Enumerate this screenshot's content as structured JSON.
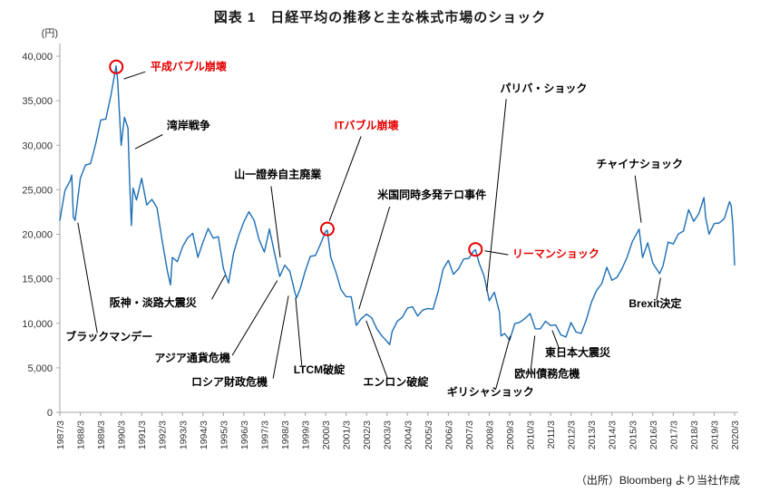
{
  "title": "図表 1　日経平均の推移と主な株式市場のショック",
  "source": "（出所）Bloomberg より当社作成",
  "chart_data": {
    "type": "line",
    "title": "図表 1　日経平均の推移と主な株式市場のショック",
    "xlabel": "",
    "ylabel": "(円)",
    "ylim": [
      0,
      40000
    ],
    "yticks": [
      0,
      5000,
      10000,
      15000,
      20000,
      25000,
      30000,
      35000,
      40000
    ],
    "x_domain": [
      1987.17,
      2020.17
    ],
    "xtick_labels": [
      "1987/3",
      "1988/3",
      "1989/3",
      "1990/3",
      "1991/3",
      "1992/3",
      "1993/3",
      "1994/3",
      "1995/3",
      "1996/3",
      "1997/3",
      "1998/3",
      "1999/3",
      "2000/3",
      "2001/3",
      "2002/3",
      "2003/3",
      "2004/3",
      "2005/3",
      "2006/3",
      "2007/3",
      "2008/3",
      "2009/3",
      "2010/3",
      "2011/3",
      "2012/3",
      "2013/3",
      "2014/3",
      "2015/3",
      "2016/3",
      "2017/3",
      "2018/3",
      "2019/3",
      "2020/3"
    ],
    "grid": false,
    "legend": "none",
    "line_color": "#1b6eb5",
    "red_color": "#e60000",
    "series": [
      {
        "name": "日経平均",
        "points": [
          [
            1987.17,
            21567
          ],
          [
            1987.42,
            24902
          ],
          [
            1987.67,
            26010
          ],
          [
            1987.75,
            26646
          ],
          [
            1987.83,
            21910
          ],
          [
            1987.92,
            21564
          ],
          [
            1988.17,
            26260
          ],
          [
            1988.42,
            27769
          ],
          [
            1988.67,
            27924
          ],
          [
            1988.92,
            30159
          ],
          [
            1989.17,
            32839
          ],
          [
            1989.42,
            32949
          ],
          [
            1989.67,
            35637
          ],
          [
            1989.92,
            38916
          ],
          [
            1990.0,
            37189
          ],
          [
            1990.17,
            29980
          ],
          [
            1990.33,
            33130
          ],
          [
            1990.5,
            31940
          ],
          [
            1990.58,
            25978
          ],
          [
            1990.67,
            20983
          ],
          [
            1990.75,
            25194
          ],
          [
            1990.92,
            23849
          ],
          [
            1991.17,
            26292
          ],
          [
            1991.42,
            23291
          ],
          [
            1991.67,
            23916
          ],
          [
            1991.92,
            22984
          ],
          [
            1992.17,
            19346
          ],
          [
            1992.42,
            15952
          ],
          [
            1992.58,
            14309
          ],
          [
            1992.67,
            17399
          ],
          [
            1992.92,
            16925
          ],
          [
            1993.17,
            18591
          ],
          [
            1993.42,
            19590
          ],
          [
            1993.67,
            20106
          ],
          [
            1993.92,
            17417
          ],
          [
            1994.17,
            19112
          ],
          [
            1994.42,
            20644
          ],
          [
            1994.67,
            19564
          ],
          [
            1994.92,
            19723
          ],
          [
            1995.17,
            16140
          ],
          [
            1995.42,
            14517
          ],
          [
            1995.67,
            17913
          ],
          [
            1995.92,
            19868
          ],
          [
            1996.17,
            21407
          ],
          [
            1996.42,
            22531
          ],
          [
            1996.67,
            21556
          ],
          [
            1996.92,
            19361
          ],
          [
            1997.17,
            18003
          ],
          [
            1997.42,
            20605
          ],
          [
            1997.67,
            17888
          ],
          [
            1997.92,
            15259
          ],
          [
            1998.17,
            16527
          ],
          [
            1998.42,
            15830
          ],
          [
            1998.67,
            13406
          ],
          [
            1998.75,
            12880
          ],
          [
            1998.92,
            13842
          ],
          [
            1999.17,
            15837
          ],
          [
            1999.42,
            17530
          ],
          [
            1999.67,
            17605
          ],
          [
            1999.92,
            18934
          ],
          [
            2000.17,
            20337
          ],
          [
            2000.25,
            20462
          ],
          [
            2000.42,
            17411
          ],
          [
            2000.67,
            15747
          ],
          [
            2000.92,
            13786
          ],
          [
            2001.17,
            12999
          ],
          [
            2001.42,
            12969
          ],
          [
            2001.67,
            9774
          ],
          [
            2001.92,
            10543
          ],
          [
            2002.17,
            11025
          ],
          [
            2002.42,
            10622
          ],
          [
            2002.67,
            9383
          ],
          [
            2002.92,
            8579
          ],
          [
            2003.17,
            7973
          ],
          [
            2003.3,
            7607
          ],
          [
            2003.42,
            9083
          ],
          [
            2003.67,
            10219
          ],
          [
            2003.92,
            10677
          ],
          [
            2004.17,
            11715
          ],
          [
            2004.42,
            11859
          ],
          [
            2004.67,
            10824
          ],
          [
            2004.92,
            11489
          ],
          [
            2005.17,
            11669
          ],
          [
            2005.42,
            11584
          ],
          [
            2005.67,
            13574
          ],
          [
            2005.92,
            16111
          ],
          [
            2006.17,
            17060
          ],
          [
            2006.42,
            15505
          ],
          [
            2006.67,
            16128
          ],
          [
            2006.92,
            17226
          ],
          [
            2007.17,
            17288
          ],
          [
            2007.42,
            18138
          ],
          [
            2007.5,
            18262
          ],
          [
            2007.67,
            16786
          ],
          [
            2007.92,
            15308
          ],
          [
            2008.17,
            12526
          ],
          [
            2008.42,
            13481
          ],
          [
            2008.67,
            11260
          ],
          [
            2008.75,
            8577
          ],
          [
            2008.92,
            8860
          ],
          [
            2009.17,
            8110
          ],
          [
            2009.42,
            9958
          ],
          [
            2009.67,
            10133
          ],
          [
            2009.92,
            10546
          ],
          [
            2010.17,
            11090
          ],
          [
            2010.42,
            9383
          ],
          [
            2010.67,
            9369
          ],
          [
            2010.92,
            10229
          ],
          [
            2011.17,
            9755
          ],
          [
            2011.42,
            9816
          ],
          [
            2011.67,
            8700
          ],
          [
            2011.92,
            8455
          ],
          [
            2012.17,
            10084
          ],
          [
            2012.42,
            9007
          ],
          [
            2012.67,
            8870
          ],
          [
            2012.92,
            10395
          ],
          [
            2013.17,
            12398
          ],
          [
            2013.42,
            13677
          ],
          [
            2013.67,
            14456
          ],
          [
            2013.92,
            16291
          ],
          [
            2014.17,
            14828
          ],
          [
            2014.42,
            15162
          ],
          [
            2014.67,
            16174
          ],
          [
            2014.92,
            17451
          ],
          [
            2015.17,
            19207
          ],
          [
            2015.42,
            20236
          ],
          [
            2015.5,
            20585
          ],
          [
            2015.67,
            17388
          ],
          [
            2015.92,
            19034
          ],
          [
            2016.17,
            16759
          ],
          [
            2016.5,
            15576
          ],
          [
            2016.67,
            16450
          ],
          [
            2016.92,
            19114
          ],
          [
            2017.17,
            18909
          ],
          [
            2017.42,
            20033
          ],
          [
            2017.67,
            20356
          ],
          [
            2017.92,
            22765
          ],
          [
            2018.17,
            21454
          ],
          [
            2018.42,
            22305
          ],
          [
            2018.67,
            24120
          ],
          [
            2018.75,
            21920
          ],
          [
            2018.92,
            20015
          ],
          [
            2019.17,
            21206
          ],
          [
            2019.42,
            21276
          ],
          [
            2019.67,
            21756
          ],
          [
            2019.92,
            23657
          ],
          [
            2020.0,
            23205
          ],
          [
            2020.08,
            21143
          ],
          [
            2020.17,
            16553
          ]
        ]
      }
    ],
    "highlight_circles": [
      {
        "id": "heisei-bubble-peak",
        "x": 1989.93,
        "y": 38800
      },
      {
        "id": "it-bubble-peak",
        "x": 2000.25,
        "y": 20600
      },
      {
        "id": "pre-lehman-peak",
        "x": 2007.5,
        "y": 18300
      }
    ],
    "annotations": [
      {
        "id": "heisei-bubble",
        "label": "平成バブル崩壊",
        "color": "red",
        "anchor": "start",
        "text": [
          1991.6,
          38400
        ],
        "line": [
          1991.35,
          38250,
          1990.3,
          37450
        ]
      },
      {
        "id": "gulf-war",
        "label": "湾岸戦争",
        "color": "black",
        "anchor": "start",
        "text": [
          1992.4,
          31800
        ],
        "line": [
          1992.2,
          31200,
          1990.85,
          29600
        ]
      },
      {
        "id": "yamaichi",
        "label": "山一證券自主廃業",
        "color": "black",
        "anchor": "start",
        "text": [
          1995.7,
          26300
        ],
        "line": [
          1997.5,
          25400,
          1997.95,
          17400
        ]
      },
      {
        "id": "paribas",
        "label": "パリバ・ショック",
        "color": "black",
        "anchor": "start",
        "text": [
          2008.7,
          36000
        ],
        "line": [
          2009.0,
          35200,
          2008.05,
          13600
        ]
      },
      {
        "id": "it-bubble",
        "label": "ITバブル崩壊",
        "color": "red",
        "anchor": "start",
        "text": [
          2000.6,
          31800
        ],
        "line": [
          2001.9,
          31000,
          2000.35,
          21500
        ]
      },
      {
        "id": "us-terror",
        "label": "米国同時多発テロ事件",
        "color": "black",
        "anchor": "start",
        "text": [
          2002.7,
          24000
        ],
        "line": [
          2003.3,
          23100,
          2001.8,
          11600
        ]
      },
      {
        "id": "china-shock",
        "label": "チャイナショック",
        "color": "black",
        "anchor": "start",
        "text": [
          2013.4,
          27500
        ],
        "line": [
          2015.3,
          26600,
          2015.6,
          21300
        ]
      },
      {
        "id": "lehman",
        "label": "リーマンショック",
        "color": "red",
        "anchor": "start",
        "text": [
          2009.3,
          17400
        ],
        "line": [
          2009.1,
          17700,
          2007.95,
          18150
        ]
      },
      {
        "id": "hanshin",
        "label": "阪神・淡路大震災",
        "color": "black",
        "anchor": "start",
        "text": [
          1989.6,
          11900
        ],
        "line": [
          1994.6,
          12700,
          1995.25,
          15400
        ]
      },
      {
        "id": "black-monday",
        "label": "ブラックマンデー",
        "color": "black",
        "anchor": "start",
        "text": [
          1987.45,
          8100
        ],
        "line": [
          1989.0,
          8900,
          1988.05,
          21300
        ]
      },
      {
        "id": "asia-currency",
        "label": "アジア通貨危機",
        "color": "black",
        "anchor": "start",
        "text": [
          1991.8,
          5700
        ],
        "line": [
          1995.6,
          6400,
          1997.8,
          14800
        ]
      },
      {
        "id": "russia",
        "label": "ロシア財政危機",
        "color": "black",
        "anchor": "start",
        "text": [
          1993.6,
          3000
        ],
        "line": [
          1997.6,
          3800,
          1998.35,
          13100
        ]
      },
      {
        "id": "ltcm",
        "label": "LTCM破綻",
        "color": "black",
        "anchor": "start",
        "text": [
          1998.6,
          4400
        ],
        "line": [
          1999.0,
          5300,
          1998.7,
          12900
        ]
      },
      {
        "id": "enron",
        "label": "エンロン破綻",
        "color": "black",
        "anchor": "start",
        "text": [
          2002.0,
          3000
        ],
        "line": [
          2003.2,
          3800,
          2002.15,
          10300
        ]
      },
      {
        "id": "greece",
        "label": "ギリシャショック",
        "color": "black",
        "anchor": "start",
        "text": [
          2006.1,
          1900
        ],
        "line": [
          2008.5,
          2700,
          2009.2,
          8600
        ]
      },
      {
        "id": "euro-debt",
        "label": "欧州債務危機",
        "color": "black",
        "anchor": "start",
        "text": [
          2009.4,
          3900
        ],
        "line": [
          2010.2,
          4700,
          2010.4,
          8600
        ]
      },
      {
        "id": "tohoku",
        "label": "東日本大震災",
        "color": "black",
        "anchor": "start",
        "text": [
          2010.9,
          6300
        ],
        "line": [
          2011.6,
          7100,
          2011.25,
          9200
        ]
      },
      {
        "id": "brexit",
        "label": "Brexit決定",
        "color": "black",
        "anchor": "start",
        "text": [
          2015.0,
          11800
        ],
        "line": [
          2016.35,
          12600,
          2016.55,
          15100
        ]
      }
    ]
  }
}
